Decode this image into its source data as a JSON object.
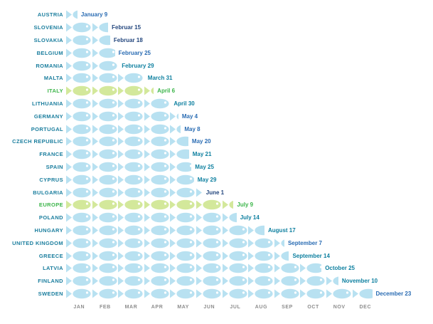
{
  "colors": {
    "fish_blue": "#b8e1f1",
    "fish_green": "#d3e89b",
    "label_teal": "#1b7e9e",
    "label_green": "#3cb54a",
    "date_blue": "#2a6cb3",
    "date_teal": "#0f80a0",
    "date_navy": "#24477e",
    "date_green": "#3cb54a",
    "month_gray": "#8d8d8d",
    "fish_eye": "#ffffff"
  },
  "chart_data": {
    "type": "bar",
    "style": "fish pictogram timeline (1 fish = 1 month)",
    "title": "",
    "xlabel": "",
    "ylabel": "",
    "grid": false,
    "legend": "none",
    "categories": [
      "JAN",
      "FEB",
      "MAR",
      "APR",
      "MAY",
      "JUN",
      "JUL",
      "AUG",
      "SEP",
      "OCT",
      "NOV",
      "DEC"
    ],
    "x_range_months": [
      0,
      12
    ],
    "rows": [
      {
        "country": "AUSTRIA",
        "date_label": "January 9",
        "fish_months": 0.29,
        "highlight": false,
        "date_color": "date_blue"
      },
      {
        "country": "SLOVENIA",
        "date_label": "Februar 15",
        "fish_months": 1.54,
        "highlight": false,
        "date_color": "date_navy"
      },
      {
        "country": "SLOVAKIA",
        "date_label": "Februar 18",
        "fish_months": 1.64,
        "highlight": false,
        "date_color": "date_navy"
      },
      {
        "country": "BELGIUM",
        "date_label": "February 25",
        "fish_months": 1.89,
        "highlight": false,
        "date_color": "date_blue"
      },
      {
        "country": "ROMANIA",
        "date_label": "February 29",
        "fish_months": 2.0,
        "highlight": false,
        "date_color": "date_teal"
      },
      {
        "country": "MALTA",
        "date_label": "March 31",
        "fish_months": 3.0,
        "highlight": false,
        "date_color": "date_teal"
      },
      {
        "country": "ITALY",
        "date_label": "April 6",
        "fish_months": 3.2,
        "highlight": true,
        "date_color": "date_green"
      },
      {
        "country": "LITHUANIA",
        "date_label": "April 30",
        "fish_months": 4.0,
        "highlight": false,
        "date_color": "date_teal"
      },
      {
        "country": "GERMANY",
        "date_label": "May 4",
        "fish_months": 4.13,
        "highlight": false,
        "date_color": "date_blue"
      },
      {
        "country": "PORTUGAL",
        "date_label": "May 8",
        "fish_months": 4.26,
        "highlight": false,
        "date_color": "date_blue"
      },
      {
        "country": "CZECH REPUBLIC",
        "date_label": "May 20",
        "fish_months": 4.65,
        "highlight": false,
        "date_color": "date_blue"
      },
      {
        "country": "FRANCE",
        "date_label": "May 21",
        "fish_months": 4.68,
        "highlight": false,
        "date_color": "date_teal"
      },
      {
        "country": "SPAIN",
        "date_label": "May 25",
        "fish_months": 4.81,
        "highlight": false,
        "date_color": "date_teal"
      },
      {
        "country": "CYPRUS",
        "date_label": "May 29",
        "fish_months": 4.94,
        "highlight": false,
        "date_color": "date_teal"
      },
      {
        "country": "BULGARIA",
        "date_label": "June 1",
        "fish_months": 5.03,
        "highlight": false,
        "date_color": "date_navy"
      },
      {
        "country": "EUROPE",
        "date_label": "July 9",
        "fish_months": 6.29,
        "highlight": true,
        "date_color": "date_green"
      },
      {
        "country": "POLAND",
        "date_label": "July 14",
        "fish_months": 6.45,
        "highlight": false,
        "date_color": "date_teal"
      },
      {
        "country": "HUNGARY",
        "date_label": "August 17",
        "fish_months": 7.55,
        "highlight": false,
        "date_color": "date_teal"
      },
      {
        "country": "UNITED KINGDOM",
        "date_label": "September 7",
        "fish_months": 8.23,
        "highlight": false,
        "date_color": "date_blue"
      },
      {
        "country": "GREECE",
        "date_label": "September 14",
        "fish_months": 8.47,
        "highlight": false,
        "date_color": "date_teal"
      },
      {
        "country": "LATVIA",
        "date_label": "October 25",
        "fish_months": 9.81,
        "highlight": false,
        "date_color": "date_teal"
      },
      {
        "country": "FINLAND",
        "date_label": "November 10",
        "fish_months": 10.33,
        "highlight": false,
        "date_color": "date_teal"
      },
      {
        "country": "SWEDEN",
        "date_label": "December 23",
        "fish_months": 11.74,
        "highlight": false,
        "date_color": "date_blue"
      }
    ]
  }
}
